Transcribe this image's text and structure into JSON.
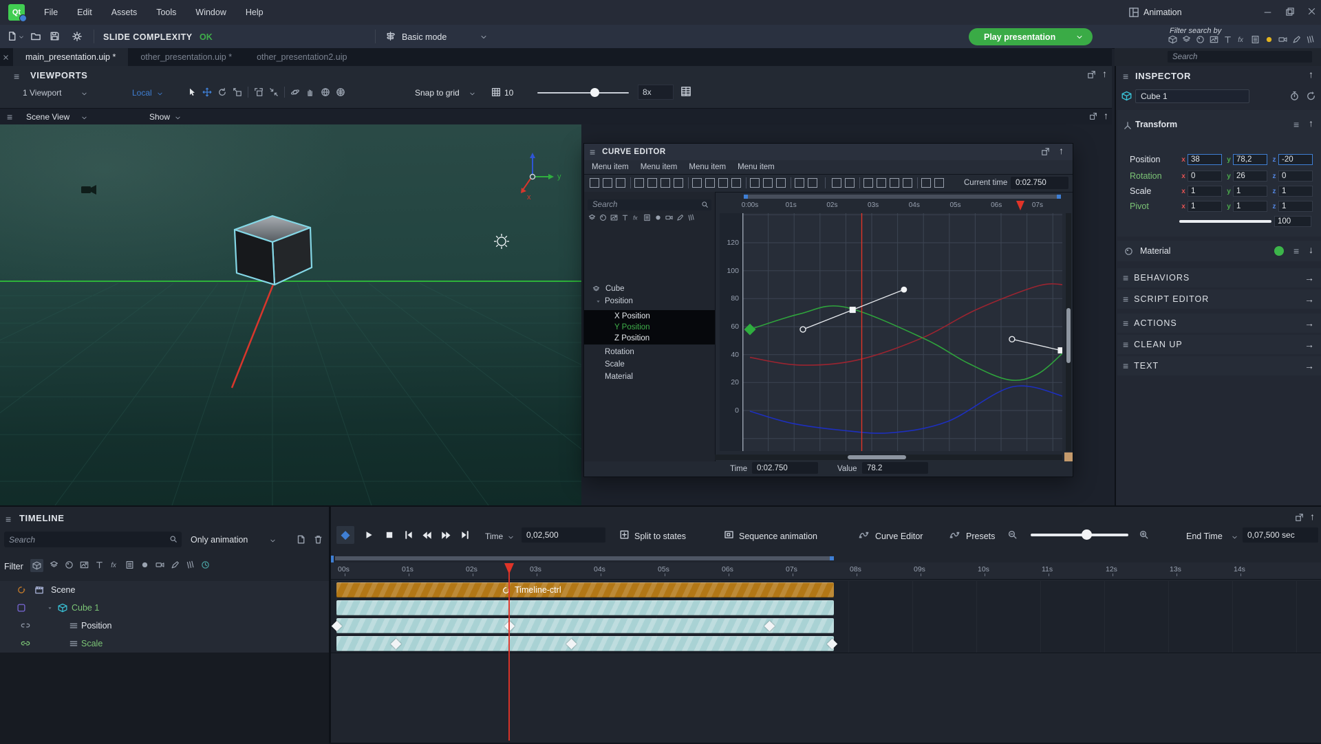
{
  "window": {
    "title": "Animation"
  },
  "menubar": {
    "logo": "Qt",
    "items": [
      "File",
      "Edit",
      "Assets",
      "Tools",
      "Window",
      "Help"
    ]
  },
  "toolbar": {
    "slide_complexity_label": "SLIDE COMPLEXITY",
    "slide_complexity_status": "OK",
    "mode": {
      "label": "Basic mode"
    },
    "play_button": {
      "label": "Play presentation"
    },
    "filter_search_by": "Filter search by",
    "filter_icons": [
      "cube",
      "layers",
      "sphere",
      "image",
      "text",
      "effect",
      "list",
      "record",
      "camera",
      "pen",
      "pages"
    ],
    "search_placeholder": "Search"
  },
  "tabs": [
    {
      "label": "main_presentation.uip *",
      "active": true
    },
    {
      "label": "other_presentation.uip *",
      "active": false
    },
    {
      "label": "other_presentation2.uip",
      "active": false
    }
  ],
  "viewports": {
    "title": "VIEWPORTS",
    "viewport_selector": "1 Viewport",
    "space_mode": "Local",
    "tool_icons": [
      "cursor",
      "move",
      "rotate",
      "scaleicon",
      "cornerdash",
      "collapse",
      "orbit",
      "hand",
      "globe",
      "spheregrid"
    ],
    "snap_label": "Snap to grid",
    "grid_value": "10",
    "zoom_value": "8x"
  },
  "scene_view": {
    "label": "Scene View",
    "show_label": "Show",
    "gizmo": {
      "x_label": "x",
      "y_label": "y"
    }
  },
  "curve_editor": {
    "title": "CURVE EDITOR",
    "menu_items": [
      "Menu item",
      "Menu item",
      "Menu item",
      "Menu item"
    ],
    "toolbar_button_groups": [
      3,
      4,
      4,
      3,
      2,
      2,
      4,
      2
    ],
    "current_time_label": "Current time",
    "current_time_value": "0:02.750",
    "search_placeholder": "Search",
    "filter_icons": [
      "layers",
      "sphere",
      "image",
      "text",
      "effect",
      "list",
      "record",
      "camera",
      "pen",
      "pages"
    ],
    "tree": [
      {
        "label": "Cube",
        "icon": "layers",
        "indent": 28,
        "color": "normal",
        "selected": false
      },
      {
        "label": "Position",
        "caret": true,
        "indent": 30,
        "color": "normal",
        "selected": false
      },
      {
        "label": "X Position",
        "indent": 44,
        "color": "white",
        "selected": true
      },
      {
        "label": "Y Position",
        "indent": 44,
        "color": "green",
        "selected": true
      },
      {
        "label": "Z Position",
        "indent": 44,
        "color": "white",
        "selected": true
      },
      {
        "label": "Rotation",
        "indent": 30,
        "color": "normal",
        "selected": false
      },
      {
        "label": "Scale",
        "indent": 30,
        "color": "normal",
        "selected": false
      },
      {
        "label": "Material",
        "indent": 30,
        "color": "normal",
        "selected": false
      }
    ],
    "chart": {
      "type": "line",
      "x_ticks": [
        "0:00s",
        "01s",
        "02s",
        "03s",
        "04s",
        "05s",
        "06s",
        "07s"
      ],
      "y_ticks": [
        120,
        100,
        80,
        60,
        40,
        20,
        0
      ],
      "x_range_seconds": [
        0,
        7.75
      ],
      "y_range": [
        -29,
        141
      ],
      "playhead_time": 2.72,
      "grid": true,
      "series": [
        {
          "name": "Y Position",
          "color": "#2fa43c",
          "points": [
            [
              0,
              58
            ],
            [
              1.2,
              69
            ],
            [
              2.3,
              74
            ],
            [
              4.2,
              52
            ],
            [
              5.3,
              34
            ],
            [
              6.3,
              22
            ],
            [
              7.0,
              26
            ],
            [
              7.65,
              42
            ]
          ]
        },
        {
          "name": "X Position",
          "color": "#9c2430",
          "points": [
            [
              0,
              38
            ],
            [
              1.2,
              32.5
            ],
            [
              2.6,
              36
            ],
            [
              4.2,
              52
            ],
            [
              5.5,
              72
            ],
            [
              7.0,
              89
            ],
            [
              7.65,
              90
            ]
          ]
        },
        {
          "name": "Z Position",
          "color": "#1d2fbf",
          "points": [
            [
              0,
              -0.5
            ],
            [
              1.0,
              -9
            ],
            [
              2.2,
              -14
            ],
            [
              3.4,
              -16
            ],
            [
              4.8,
              -8
            ],
            [
              6.4,
              17
            ],
            [
              7.65,
              10
            ]
          ]
        }
      ],
      "selected_keyframe": {
        "time": 0,
        "value": 58
      },
      "tangent_handles": [
        {
          "points": [
            [
              1.29,
              58
            ],
            [
              2.5,
              72
            ],
            [
              3.75,
              86.5
            ]
          ],
          "markers": [
            "open-circle",
            "square",
            "filled-circle"
          ]
        },
        {
          "points": [
            [
              6.38,
              51
            ],
            [
              7.57,
              43
            ]
          ],
          "markers": [
            "open-circle",
            "square"
          ]
        }
      ]
    },
    "time_label": "Time",
    "time_value": "0:02.750",
    "value_label": "Value",
    "value_value": "78.2"
  },
  "inspector": {
    "title": "INSPECTOR",
    "object_name": "Cube 1",
    "transform": {
      "title": "Transform",
      "axis_labels": {
        "x": "x",
        "y": "y",
        "z": "z"
      },
      "rows": [
        {
          "label": "Position",
          "green": false,
          "x": "38",
          "y": "78,2",
          "z": "-20",
          "highlighted": true
        },
        {
          "label": "Rotation",
          "green": true,
          "x": "0",
          "y": "26",
          "z": "0",
          "highlighted": false
        },
        {
          "label": "Scale",
          "green": false,
          "x": "1",
          "y": "1",
          "z": "1",
          "highlighted": false
        },
        {
          "label": "Pivot",
          "green": true,
          "x": "1",
          "y": "1",
          "z": "1",
          "highlighted": false
        }
      ],
      "slider_value": "100"
    },
    "material": {
      "title": "Material",
      "color": "#3cb54a"
    },
    "sections": [
      "BEHAVIORS",
      "SCRIPT  EDITOR",
      "ACTIONS",
      "CLEAN UP",
      "TEXT"
    ]
  },
  "timeline": {
    "title": "TIMELINE",
    "search_placeholder": "Search",
    "only_animation_label": "Only  animation",
    "filter_label": "Filter",
    "filter_icons": [
      "cube",
      "layers",
      "sphere",
      "image",
      "text",
      "effect",
      "list",
      "record",
      "camera",
      "pen",
      "pages",
      "clock"
    ],
    "time_label": "Time",
    "time_value": "0,02,500",
    "split_label": "Split to  states",
    "sequence_label": "Sequence animation",
    "curve_editor_label": "Curve Editor",
    "presets_label": "Presets",
    "end_time_label": "End Time",
    "end_time_value": "0,07,500 sec",
    "ruler_ticks": [
      "00s",
      "01s",
      "02s",
      "03s",
      "04s",
      "05s",
      "06s",
      "07s",
      "08s",
      "09s",
      "10s",
      "11s",
      "12s",
      "13s",
      "14s"
    ],
    "playhead_time": 2.72,
    "tree": [
      {
        "label": "Scene",
        "green": false,
        "icons": [
          "loop",
          "clapper"
        ]
      },
      {
        "label": "Cube 1",
        "green": true,
        "icons": [
          "squarebadge",
          "caret",
          "cube"
        ]
      },
      {
        "label": "Position",
        "green": false,
        "icons": [
          "unlink",
          "menu"
        ]
      },
      {
        "label": "Scale",
        "green": true,
        "icons": [
          "link",
          "menu"
        ]
      }
    ],
    "tracks": [
      {
        "row": "Scene",
        "type": "control",
        "bar": [
          0,
          7.77
        ],
        "label": "Timeline-ctrl",
        "keyframes": []
      },
      {
        "row": "Cube 1",
        "type": "span",
        "bar": [
          0,
          7.77
        ],
        "keyframes": []
      },
      {
        "row": "Position",
        "type": "span",
        "bar": [
          0,
          7.77
        ],
        "keyframes": [
          0,
          2.7,
          6.77
        ]
      },
      {
        "row": "Scale",
        "type": "span",
        "bar": [
          0,
          7.77
        ],
        "keyframes": [
          0.93,
          3.67,
          7.75
        ]
      }
    ]
  }
}
